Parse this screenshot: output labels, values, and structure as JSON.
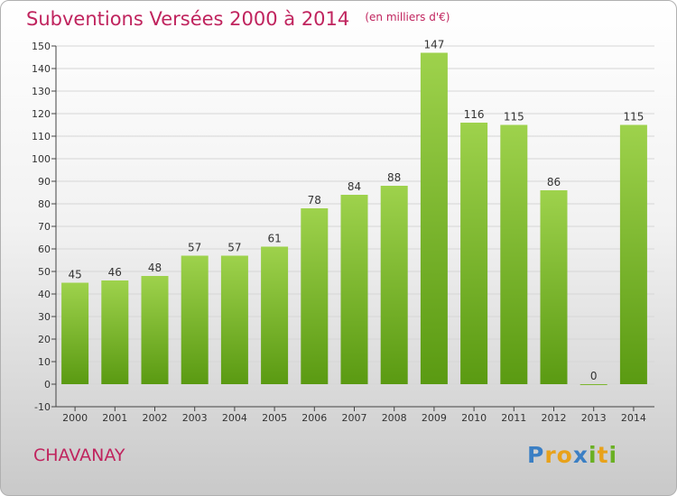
{
  "chart_data": {
    "type": "bar",
    "title": "Subventions Versées 2000 à 2014",
    "subtitle": "(en milliers d'€)",
    "categories": [
      "2000",
      "2001",
      "2002",
      "2003",
      "2004",
      "2005",
      "2006",
      "2007",
      "2008",
      "2009",
      "2010",
      "2011",
      "2012",
      "2013",
      "2014"
    ],
    "values": [
      45,
      46,
      48,
      57,
      57,
      61,
      78,
      84,
      88,
      147,
      116,
      115,
      86,
      0,
      115
    ],
    "ylim": [
      -10,
      150
    ],
    "yticks": [
      -10,
      0,
      10,
      20,
      30,
      40,
      50,
      60,
      70,
      80,
      90,
      100,
      110,
      120,
      130,
      140,
      150
    ],
    "grid": true,
    "bar_color_top": "#9ed24c",
    "bar_color_bottom": "#5a9a12"
  },
  "place": "CHAVANAY",
  "logo": {
    "letters": [
      "P",
      "r",
      "o",
      "x",
      "i",
      "t",
      "i"
    ],
    "colors": [
      "#3b7fc4",
      "#e8a21a",
      "#e8a21a",
      "#3b7fc4",
      "#6ab023",
      "#e8a21a",
      "#6ab023"
    ]
  }
}
